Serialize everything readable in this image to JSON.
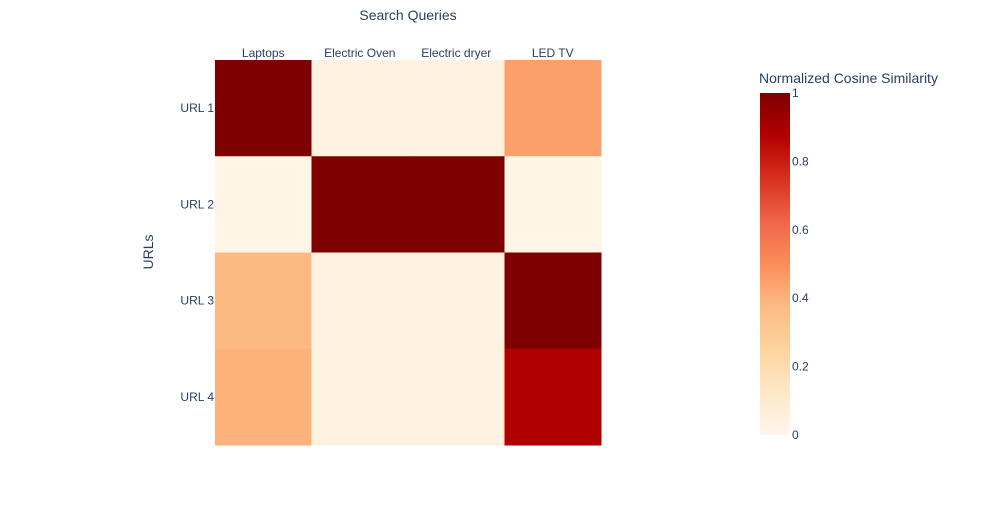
{
  "chart_data": {
    "type": "heatmap",
    "title": "",
    "xlabel": "Search Queries",
    "ylabel": "URLs",
    "x_categories": [
      "Laptops",
      "Electric Oven",
      "Electric dryer",
      "LED TV"
    ],
    "y_categories": [
      "URL 1",
      "URL 2",
      "URL 3",
      "URL 4"
    ],
    "z": [
      [
        1.0,
        0.04,
        0.04,
        0.45
      ],
      [
        0.02,
        1.0,
        1.0,
        0.02
      ],
      [
        0.38,
        0.04,
        0.04,
        1.0
      ],
      [
        0.4,
        0.04,
        0.04,
        0.88
      ]
    ],
    "xaxis_side": "top",
    "colorscale_name": "OrRd",
    "colorscale": [
      [
        0.0,
        "#fff7ec"
      ],
      [
        0.125,
        "#fee8c8"
      ],
      [
        0.25,
        "#fdd49e"
      ],
      [
        0.375,
        "#fdbb84"
      ],
      [
        0.5,
        "#fc8d59"
      ],
      [
        0.625,
        "#ef6548"
      ],
      [
        0.75,
        "#d7301f"
      ],
      [
        0.875,
        "#b30000"
      ],
      [
        1.0,
        "#7f0000"
      ]
    ],
    "zrange": [
      0,
      1
    ],
    "colorbar": {
      "title": "Normalized Cosine Similarity",
      "tickvals": [
        0,
        0.2,
        0.4,
        0.6,
        0.8,
        1
      ],
      "ticklabels": [
        "0",
        "0.2",
        "0.4",
        "0.6",
        "0.8",
        "1"
      ]
    }
  }
}
